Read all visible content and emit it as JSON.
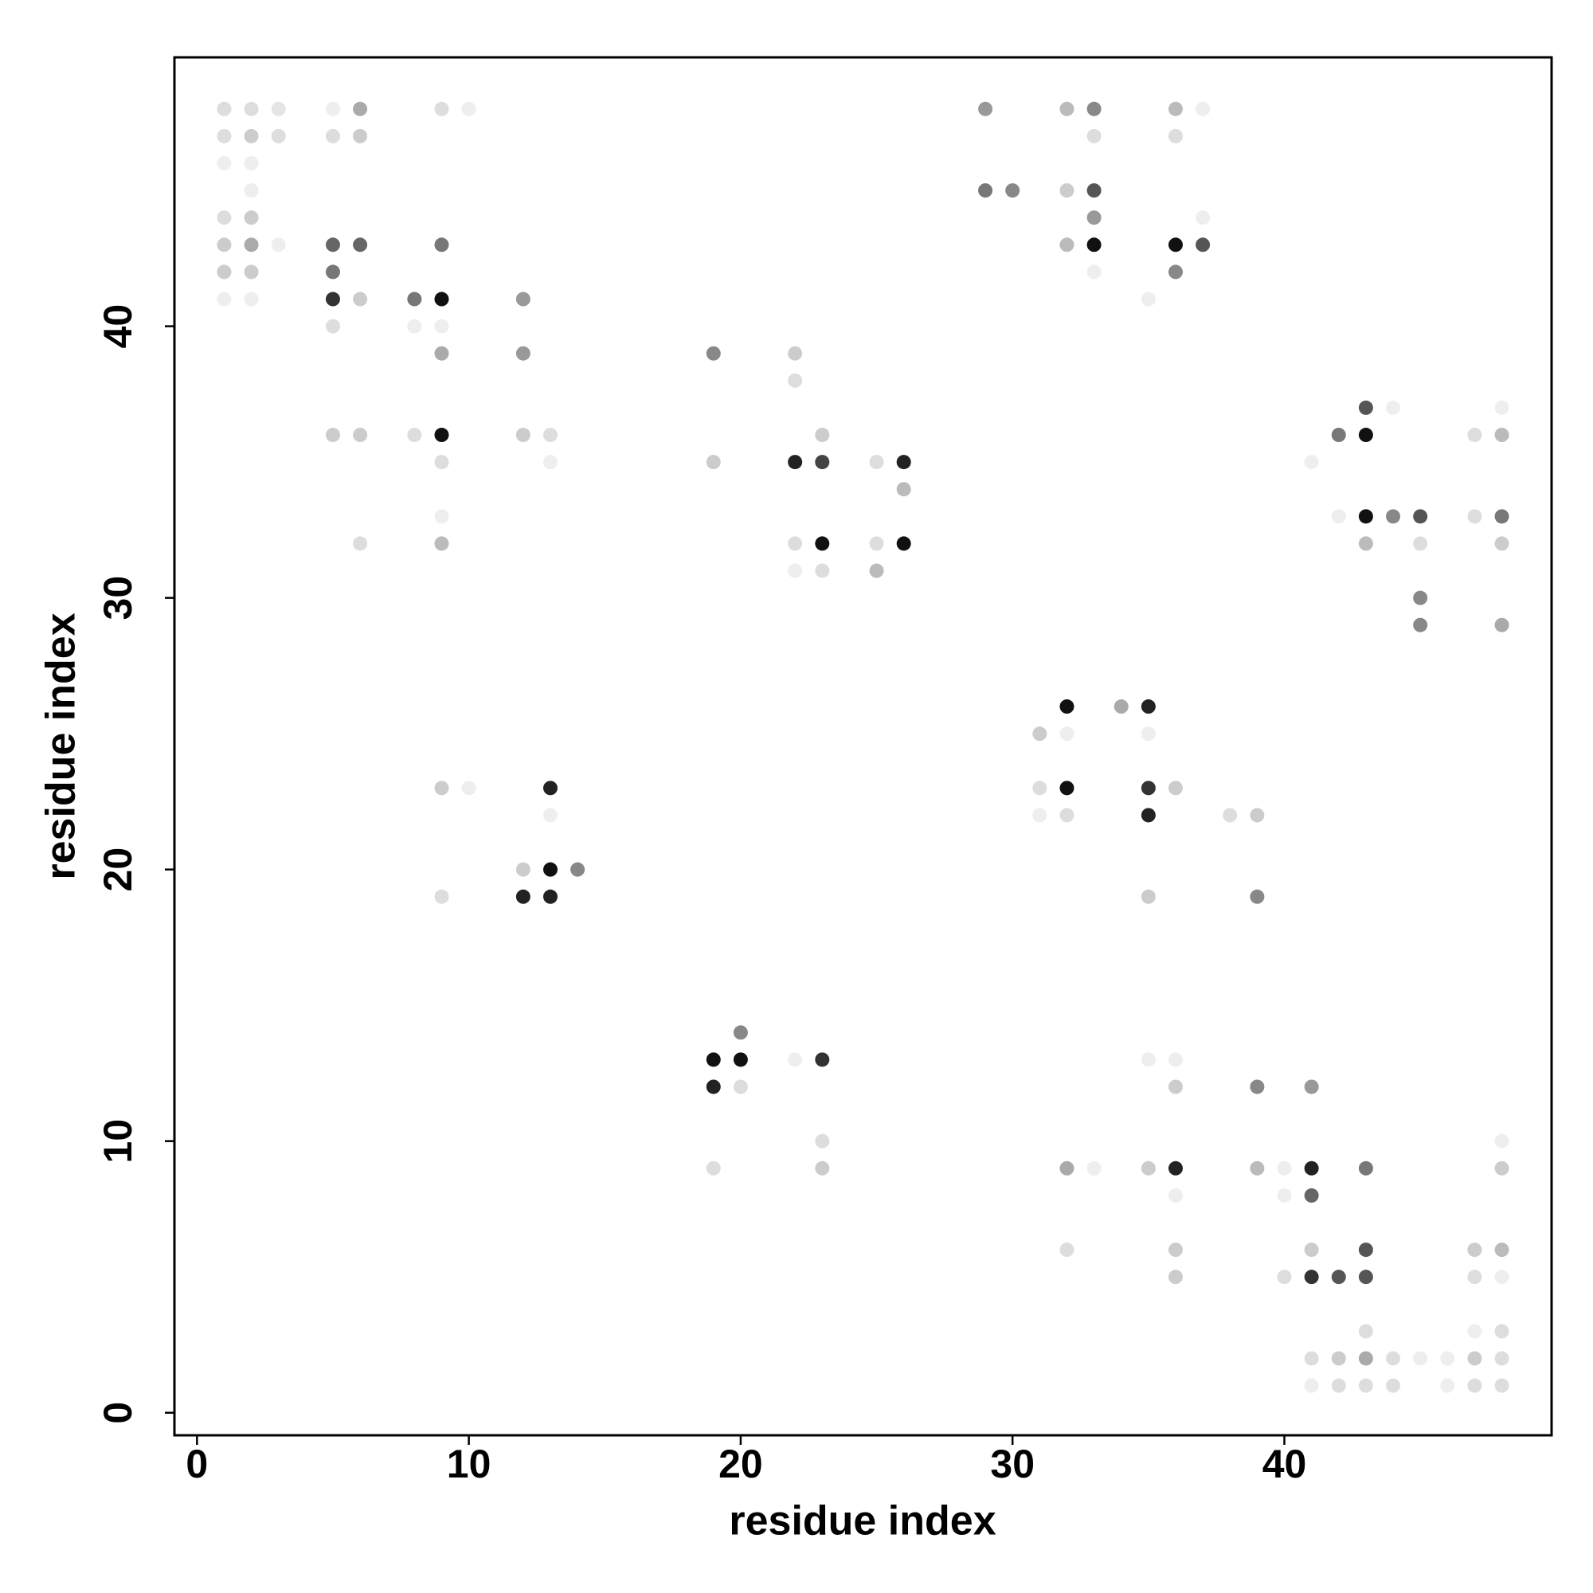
{
  "chart_data": {
    "type": "scatter",
    "x_label": "residue index",
    "y_label": "residue index",
    "xlim": [
      -0.83,
      49.83
    ],
    "ylim": [
      -0.83,
      49.9
    ],
    "xticks": [
      0,
      10,
      20,
      30,
      40
    ],
    "yticks": [
      0,
      10,
      20,
      30,
      40
    ],
    "x": [
      1,
      2,
      3,
      5,
      6,
      9,
      10,
      29,
      32,
      33,
      36,
      37,
      1,
      2,
      3,
      5,
      6,
      33,
      36,
      1,
      2,
      2,
      29,
      30,
      32,
      33,
      1,
      2,
      33,
      37,
      1,
      2,
      3,
      5,
      6,
      9,
      32,
      33,
      36,
      37,
      1,
      2,
      5,
      33,
      36,
      1,
      2,
      5,
      6,
      8,
      9,
      12,
      35,
      5,
      8,
      9,
      9,
      12,
      19,
      22,
      22,
      43,
      44,
      48,
      5,
      6,
      8,
      9,
      12,
      13,
      23,
      42,
      43,
      47,
      48,
      9,
      13,
      19,
      22,
      23,
      25,
      26,
      41,
      26,
      9,
      42,
      43,
      44,
      45,
      47,
      48,
      6,
      9,
      22,
      23,
      25,
      26,
      43,
      45,
      48,
      22,
      23,
      25,
      45,
      45,
      48,
      32,
      34,
      35,
      31,
      32,
      35,
      9,
      10,
      13,
      31,
      32,
      35,
      36,
      13,
      31,
      32,
      35,
      38,
      39,
      12,
      13,
      14,
      9,
      12,
      13,
      35,
      39,
      20,
      19,
      20,
      22,
      23,
      35,
      36,
      19,
      20,
      36,
      39,
      41,
      23,
      48,
      19,
      23,
      32,
      33,
      35,
      36,
      39,
      40,
      41,
      43,
      48,
      36,
      40,
      41,
      32,
      36,
      41,
      43,
      47,
      48,
      36,
      40,
      41,
      42,
      43,
      47,
      48,
      43,
      47,
      48,
      41,
      42,
      43,
      44,
      45,
      46,
      47,
      48,
      41,
      42,
      43,
      44,
      46,
      47,
      48
    ],
    "values": [
      48,
      48,
      48,
      48,
      48,
      48,
      48,
      48,
      48,
      48,
      48,
      48,
      47,
      47,
      47,
      47,
      47,
      47,
      47,
      46,
      46,
      45,
      45,
      45,
      45,
      45,
      44,
      44,
      44,
      44,
      43,
      43,
      43,
      43,
      43,
      43,
      43,
      43,
      43,
      43,
      42,
      42,
      42,
      42,
      42,
      41,
      41,
      41,
      41,
      41,
      41,
      41,
      41,
      40,
      40,
      40,
      39,
      39,
      39,
      39,
      38,
      37,
      37,
      37,
      36,
      36,
      36,
      36,
      36,
      36,
      36,
      36,
      36,
      36,
      36,
      35,
      35,
      35,
      35,
      35,
      35,
      35,
      35,
      34,
      33,
      33,
      33,
      33,
      33,
      33,
      33,
      32,
      32,
      32,
      32,
      32,
      32,
      32,
      32,
      32,
      31,
      31,
      31,
      30,
      29,
      29,
      26,
      26,
      26,
      25,
      25,
      25,
      23,
      23,
      23,
      23,
      23,
      23,
      23,
      22,
      22,
      22,
      22,
      22,
      22,
      20,
      20,
      20,
      19,
      19,
      19,
      19,
      19,
      14,
      13,
      13,
      13,
      13,
      13,
      13,
      12,
      12,
      12,
      12,
      12,
      10,
      10,
      9,
      9,
      9,
      9,
      9,
      9,
      9,
      9,
      9,
      9,
      9,
      8,
      8,
      8,
      6,
      6,
      6,
      6,
      6,
      6,
      5,
      5,
      5,
      5,
      5,
      5,
      5,
      3,
      3,
      3,
      2,
      2,
      2,
      2,
      2,
      2,
      2,
      2,
      1,
      1,
      1,
      1,
      1,
      1,
      1
    ],
    "colors": [
      "#ddd",
      "#ddd",
      "#e5e5e5",
      "#eee",
      "#aaa",
      "#ddd",
      "#eee",
      "#999",
      "#bbb",
      "#888",
      "#bbb",
      "#eee",
      "#ddd",
      "#ccc",
      "#ddd",
      "#ddd",
      "#ccc",
      "#ddd",
      "#ddd",
      "#eee",
      "#eee",
      "#eee",
      "#777",
      "#888",
      "#ccc",
      "#555",
      "#ddd",
      "#ccc",
      "#999",
      "#eee",
      "#ccc",
      "#aaa",
      "#eee",
      "#666",
      "#666",
      "#777",
      "#bbb",
      "#111",
      "#111",
      "#555",
      "#ccc",
      "#ccc",
      "#777",
      "#eee",
      "#888",
      "#eee",
      "#eee",
      "#333",
      "#ccc",
      "#777",
      "#111",
      "#999",
      "#eee",
      "#ddd",
      "#eee",
      "#eee",
      "#aaa",
      "#999",
      "#888",
      "#ccc",
      "#ddd",
      "#555",
      "#eee",
      "#eee",
      "#ccc",
      "#ccc",
      "#ddd",
      "#111",
      "#ccc",
      "#ddd",
      "#ccc",
      "#777",
      "#111",
      "#ddd",
      "#bbb",
      "#ddd",
      "#eee",
      "#ccc",
      "#222",
      "#444",
      "#ddd",
      "#222",
      "#eee",
      "#bbb",
      "#eee",
      "#eee",
      "#111",
      "#888",
      "#555",
      "#ddd",
      "#777",
      "#ddd",
      "#bbb",
      "#ddd",
      "#111",
      "#ddd",
      "#111",
      "#bbb",
      "#ddd",
      "#ccc",
      "#eee",
      "#ddd",
      "#bbb",
      "#888",
      "#888",
      "#aaa",
      "#111",
      "#aaa",
      "#222",
      "#ccc",
      "#eee",
      "#eee",
      "#ccc",
      "#eee",
      "#222",
      "#ddd",
      "#111",
      "#333",
      "#ccc",
      "#eee",
      "#eee",
      "#ddd",
      "#222",
      "#ddd",
      "#ccc",
      "#ccc",
      "#111",
      "#888",
      "#ddd",
      "#222",
      "#222",
      "#ccc",
      "#888",
      "#888",
      "#111",
      "#111",
      "#eee",
      "#333",
      "#eee",
      "#eee",
      "#222",
      "#ddd",
      "#ccc",
      "#888",
      "#999",
      "#ddd",
      "#eee",
      "#ddd",
      "#ccc",
      "#aaa",
      "#eee",
      "#ccc",
      "#222",
      "#bbb",
      "#eee",
      "#222",
      "#777",
      "#ccc",
      "#eee",
      "#eee",
      "#666",
      "#ddd",
      "#ccc",
      "#ccc",
      "#555",
      "#ccc",
      "#bbb",
      "#ccc",
      "#ddd",
      "#333",
      "#555",
      "#555",
      "#ddd",
      "#eee",
      "#ddd",
      "#eee",
      "#ddd",
      "#ddd",
      "#ccc",
      "#aaa",
      "#ddd",
      "#eee",
      "#eee",
      "#ccc",
      "#ddd",
      "#eee",
      "#ddd",
      "#ddd",
      "#ddd",
      "#eee",
      "#ddd",
      "#ddd"
    ]
  }
}
